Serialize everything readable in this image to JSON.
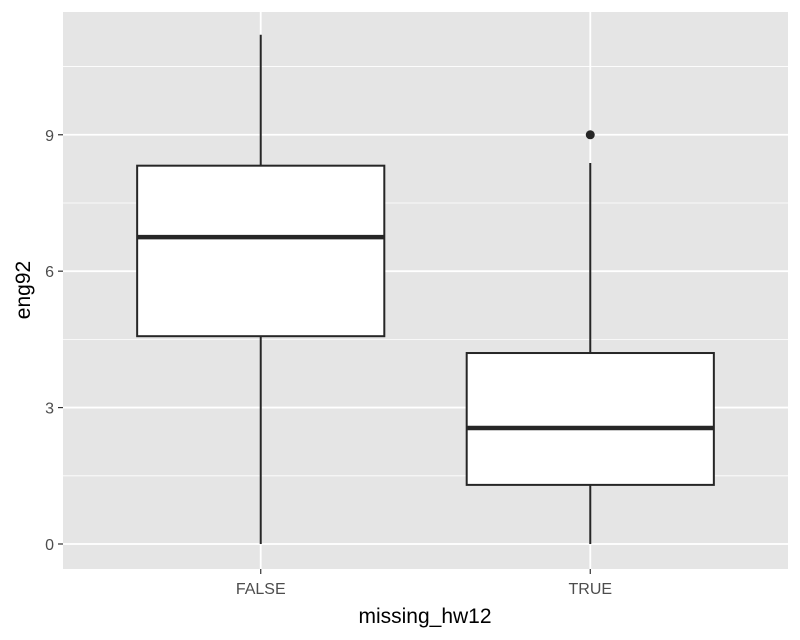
{
  "chart_data": {
    "type": "boxplot",
    "title": "",
    "xlabel": "missing_hw12",
    "ylabel": "eng92",
    "categories": [
      "FALSE",
      "TRUE"
    ],
    "ylim": [
      -0.55,
      11.7
    ],
    "yticks": [
      0,
      3,
      6,
      9
    ],
    "ytick_labels": [
      "0",
      "3",
      "6",
      "9"
    ],
    "grid": true,
    "boxes": [
      {
        "category": "FALSE",
        "whisker_low": 0,
        "q1": 4.57,
        "median": 6.75,
        "q3": 8.32,
        "whisker_high": 11.2,
        "outliers": []
      },
      {
        "category": "TRUE",
        "whisker_low": 0,
        "q1": 1.3,
        "median": 2.55,
        "q3": 4.2,
        "whisker_high": 8.38,
        "outliers": [
          9.0
        ]
      }
    ],
    "colors": {
      "panel_background": "#e5e5e5",
      "grid": "#ffffff",
      "box_fill": "#ffffff",
      "box_stroke": "#262626",
      "tick_label": "#4d4d4d",
      "axis_title": "#000000"
    }
  }
}
